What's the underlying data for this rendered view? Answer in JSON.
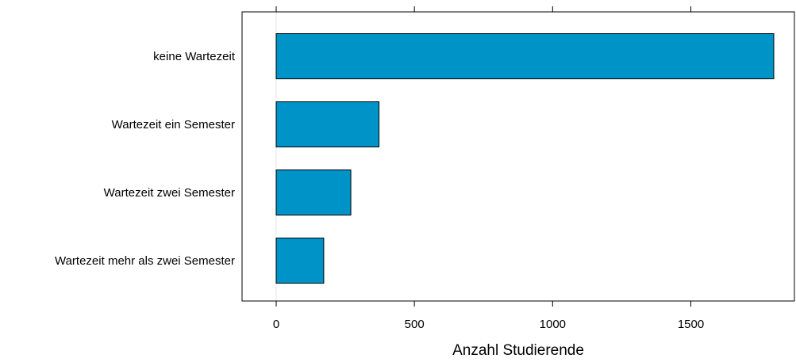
{
  "chart_data": {
    "type": "bar",
    "orientation": "horizontal",
    "categories": [
      "keine Wartezeit",
      "Wartezeit ein Semester",
      "Wartezeit zwei Semester",
      "Wartezeit mehr als zwei Semester"
    ],
    "values": [
      1800,
      372,
      270,
      172
    ],
    "xlabel": "Anzahl Studierende",
    "ylabel": "",
    "xlim": [
      -130,
      1880
    ],
    "xticks": [
      0,
      500,
      1000,
      1500
    ],
    "xtick_labels": [
      "0",
      "500",
      "1000",
      "1500"
    ],
    "grid": false,
    "legend": "none",
    "bar_color": "#0093C8",
    "bar_edge_color": "#000000",
    "zero_line_color": "#E6E6E6"
  }
}
